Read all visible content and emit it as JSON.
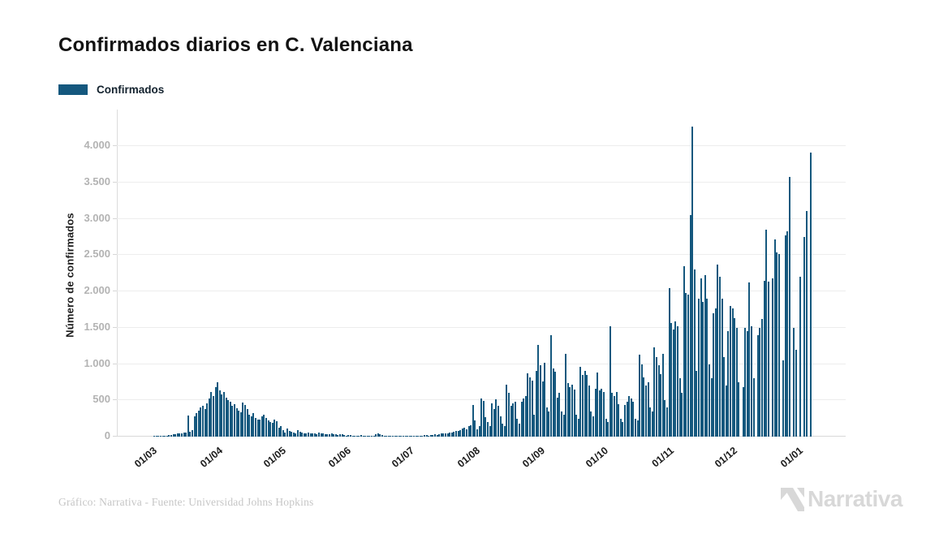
{
  "header": {
    "title": "Confirmados diarios en C. Valenciana"
  },
  "legend": {
    "label": "Confirmados",
    "color": "#15587e"
  },
  "footer": {
    "credit": "Gráfico: Narrativa - Fuente: Universidad Johns Hopkins",
    "brand": "Narrativa"
  },
  "chart_data": {
    "type": "bar",
    "title": "Confirmados diarios en C. Valenciana",
    "series_name": "Confirmados",
    "xlabel": "",
    "ylabel": "Número de confirmados",
    "ylim": [
      0,
      4300
    ],
    "grid": true,
    "legend_position": "top-left",
    "bar_color": "#15587e",
    "y_ticks": [
      {
        "value": 0,
        "label": "0"
      },
      {
        "value": 500,
        "label": "500"
      },
      {
        "value": 1000,
        "label": "1.000"
      },
      {
        "value": 1500,
        "label": "1.500"
      },
      {
        "value": 2000,
        "label": "2.000"
      },
      {
        "value": 2500,
        "label": "2.500"
      },
      {
        "value": 3000,
        "label": "3.000"
      },
      {
        "value": 3500,
        "label": "3.500"
      },
      {
        "value": 4000,
        "label": "4.000"
      }
    ],
    "x_ticks": [
      {
        "label": "01/03",
        "day": 0
      },
      {
        "label": "01/04",
        "day": 31
      },
      {
        "label": "01/05",
        "day": 61
      },
      {
        "label": "01/06",
        "day": 92
      },
      {
        "label": "01/07",
        "day": 122
      },
      {
        "label": "01/08",
        "day": 153
      },
      {
        "label": "01/09",
        "day": 184
      },
      {
        "label": "01/10",
        "day": 214
      },
      {
        "label": "01/11",
        "day": 245
      },
      {
        "label": "01/12",
        "day": 275
      },
      {
        "label": "01/01",
        "day": 306
      }
    ],
    "values": [
      0,
      0,
      2,
      3,
      5,
      8,
      10,
      12,
      15,
      20,
      25,
      30,
      35,
      40,
      45,
      50,
      55,
      60,
      290,
      70,
      90,
      280,
      320,
      360,
      400,
      430,
      380,
      460,
      520,
      620,
      560,
      680,
      750,
      640,
      580,
      620,
      540,
      500,
      480,
      430,
      450,
      390,
      360,
      330,
      470,
      440,
      380,
      300,
      280,
      320,
      260,
      240,
      230,
      280,
      300,
      260,
      220,
      200,
      190,
      230,
      210,
      120,
      140,
      90,
      60,
      110,
      80,
      70,
      60,
      50,
      90,
      70,
      60,
      50,
      40,
      60,
      50,
      45,
      40,
      35,
      55,
      45,
      40,
      30,
      35,
      30,
      40,
      35,
      30,
      25,
      35,
      30,
      20,
      15,
      25,
      20,
      15,
      10,
      10,
      15,
      20,
      15,
      10,
      10,
      15,
      10,
      8,
      30,
      45,
      35,
      20,
      10,
      15,
      12,
      10,
      8,
      10,
      12,
      10,
      8,
      6,
      10,
      10,
      8,
      12,
      10,
      15,
      12,
      10,
      15,
      20,
      18,
      15,
      20,
      25,
      30,
      25,
      35,
      40,
      45,
      40,
      50,
      60,
      55,
      70,
      80,
      75,
      90,
      110,
      120,
      100,
      150,
      160,
      440,
      220,
      100,
      150,
      530,
      490,
      270,
      200,
      150,
      460,
      380,
      515,
      430,
      275,
      180,
      150,
      720,
      600,
      420,
      460,
      480,
      250,
      180,
      480,
      520,
      560,
      870,
      820,
      775,
      300,
      900,
      1260,
      980,
      760,
      1020,
      400,
      350,
      1400,
      940,
      890,
      535,
      600,
      350,
      300,
      1140,
      740,
      680,
      720,
      650,
      300,
      250,
      960,
      850,
      900,
      850,
      700,
      350,
      280,
      660,
      880,
      640,
      660,
      620,
      250,
      200,
      1520,
      600,
      560,
      620,
      450,
      250,
      200,
      440,
      480,
      560,
      520,
      480,
      250,
      220,
      1130,
      1000,
      820,
      700,
      750,
      400,
      350,
      1230,
      1090,
      980,
      860,
      1140,
      500,
      400,
      2040,
      1560,
      1480,
      1590,
      1520,
      800,
      600,
      2350,
      1980,
      1950,
      3050,
      4270,
      2300,
      900,
      1900,
      2180,
      1850,
      2220,
      1900,
      1000,
      800,
      1700,
      1760,
      2370,
      2200,
      1900,
      1100,
      700,
      1450,
      1800,
      1760,
      1630,
      1500,
      750,
      0,
      680,
      1500,
      1450,
      2120,
      1520,
      800,
      0,
      1400,
      1500,
      1620,
      2150,
      2850,
      2130,
      0,
      2180,
      2720,
      2540,
      2510,
      0,
      1050,
      2770,
      2830,
      3580,
      0,
      1500,
      1200,
      0,
      2200,
      0,
      2750,
      3110,
      0,
      3910
    ]
  }
}
